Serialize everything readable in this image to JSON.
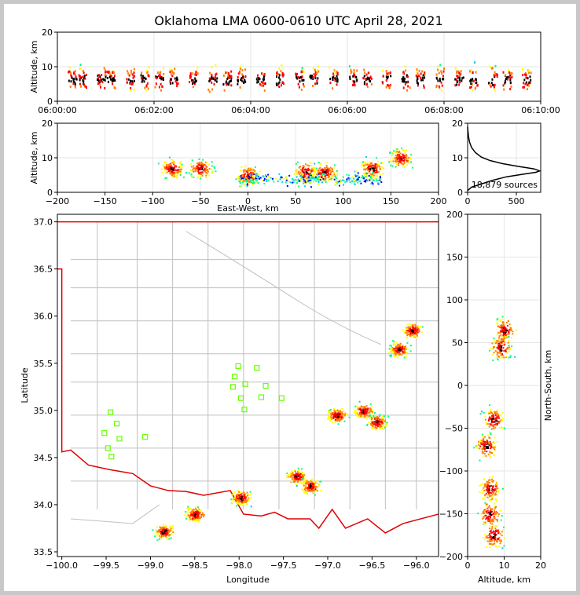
{
  "title": "Oklahoma LMA 0600-0610 UTC April 28, 2021",
  "colors": {
    "density": [
      "#0000ff",
      "#00c8ff",
      "#00ff80",
      "#ffff00",
      "#ff8000",
      "#ff0000",
      "#000000"
    ],
    "state_border": "#e00000",
    "county_lines": "#c0c0c0",
    "stations": "#66ff00"
  },
  "chart_data": [
    {
      "name": "time_height",
      "type": "scatter",
      "ylabel": "Altitude, km",
      "xlim": [
        "06:00:00",
        "06:10:00"
      ],
      "ylim": [
        0,
        20
      ],
      "xticks": [
        "06:00:00",
        "06:02:00",
        "06:04:00",
        "06:06:00",
        "06:08:00",
        "06:10:00"
      ],
      "yticks": [
        "0",
        "10",
        "20"
      ],
      "columns_minutes": [
        0.3,
        0.5,
        0.9,
        1.1,
        1.5,
        1.8,
        2.1,
        2.4,
        2.8,
        3.2,
        3.5,
        3.8,
        4.2,
        4.6,
        5.0,
        5.3,
        5.7,
        6.1,
        6.4,
        6.8,
        7.2,
        7.5,
        7.9,
        8.3,
        8.6,
        9.0,
        9.3,
        9.7
      ],
      "altitude_range_km": [
        2,
        14
      ]
    },
    {
      "name": "east_west_height",
      "type": "scatter",
      "xlabel": "East-West, km",
      "ylabel": "Altitude, km",
      "xlim": [
        -200,
        200
      ],
      "ylim": [
        0,
        20
      ],
      "xticks": [
        "−200",
        "−150",
        "−100",
        "−50",
        "0",
        "50",
        "100",
        "150",
        "200"
      ],
      "yticks": [
        "0",
        "10",
        "20"
      ],
      "clusters_km": [
        [
          -80,
          7
        ],
        [
          -50,
          7
        ],
        [
          0,
          5
        ],
        [
          60,
          6
        ],
        [
          80,
          6
        ],
        [
          130,
          7
        ],
        [
          160,
          10
        ]
      ]
    },
    {
      "name": "altitude_histogram",
      "type": "line",
      "xlim": [
        0,
        750
      ],
      "ylim": [
        0,
        20
      ],
      "xticks": [
        "0",
        "500"
      ],
      "yticks": [
        "0",
        "10",
        "20"
      ],
      "sources_label": "18,879 sources",
      "profile": [
        [
          0,
          0.5
        ],
        [
          40,
          1.5
        ],
        [
          150,
          2.5
        ],
        [
          260,
          3.5
        ],
        [
          400,
          4.5
        ],
        [
          560,
          5.2
        ],
        [
          700,
          5.8
        ],
        [
          740,
          6.2
        ],
        [
          680,
          6.8
        ],
        [
          520,
          7.5
        ],
        [
          360,
          8.3
        ],
        [
          230,
          9.2
        ],
        [
          140,
          10.2
        ],
        [
          80,
          11.5
        ],
        [
          40,
          13
        ],
        [
          20,
          14.5
        ],
        [
          10,
          16
        ],
        [
          4,
          17.5
        ],
        [
          0,
          19
        ]
      ]
    },
    {
      "name": "plan_view",
      "type": "scatter",
      "xlabel": "Longitude",
      "ylabel": "Latitude",
      "xlim": [
        -100.05,
        -95.75
      ],
      "ylim": [
        33.45,
        37.08
      ],
      "xticks": [
        "−100.0",
        "−99.5",
        "−99.0",
        "−98.5",
        "−98.0",
        "−97.5",
        "−97.0",
        "−96.5",
        "−96.0"
      ],
      "yticks": [
        "33.5",
        "34.0",
        "34.5",
        "35.0",
        "35.5",
        "36.0",
        "36.5",
        "37.0"
      ],
      "clusters_lonlat": [
        [
          -98.85,
          33.72
        ],
        [
          -98.5,
          33.9
        ],
        [
          -97.98,
          34.08
        ],
        [
          -97.35,
          34.3
        ],
        [
          -97.2,
          34.2
        ],
        [
          -96.9,
          34.95
        ],
        [
          -96.6,
          35.0
        ],
        [
          -96.45,
          34.88
        ],
        [
          -96.2,
          35.65
        ],
        [
          -96.05,
          35.85
        ]
      ],
      "stations": [
        [
          -99.45,
          34.98
        ],
        [
          -99.38,
          34.86
        ],
        [
          -99.52,
          34.76
        ],
        [
          -99.35,
          34.7
        ],
        [
          -99.48,
          34.6
        ],
        [
          -99.44,
          34.51
        ],
        [
          -99.06,
          34.72
        ],
        [
          -98.01,
          35.47
        ],
        [
          -98.05,
          35.36
        ],
        [
          -97.93,
          35.28
        ],
        [
          -98.07,
          35.25
        ],
        [
          -97.8,
          35.45
        ],
        [
          -97.7,
          35.26
        ],
        [
          -97.98,
          35.13
        ],
        [
          -97.75,
          35.14
        ],
        [
          -97.52,
          35.13
        ],
        [
          -97.94,
          35.01
        ]
      ]
    },
    {
      "name": "north_south_height",
      "type": "scatter",
      "xlabel": "Altitude, km",
      "ylabel": "North-South, km",
      "xlim": [
        0,
        20
      ],
      "ylim": [
        -200,
        200
      ],
      "xticks": [
        "0",
        "10",
        "20"
      ],
      "yticks": [
        "−200",
        "−150",
        "−100",
        "−50",
        "0",
        "50",
        "100",
        "150",
        "200"
      ],
      "clusters_km": [
        [
          10,
          65
        ],
        [
          9,
          45
        ],
        [
          7,
          -40
        ],
        [
          5,
          -70
        ],
        [
          6,
          -120
        ],
        [
          6,
          -150
        ],
        [
          7,
          -175
        ]
      ]
    }
  ]
}
